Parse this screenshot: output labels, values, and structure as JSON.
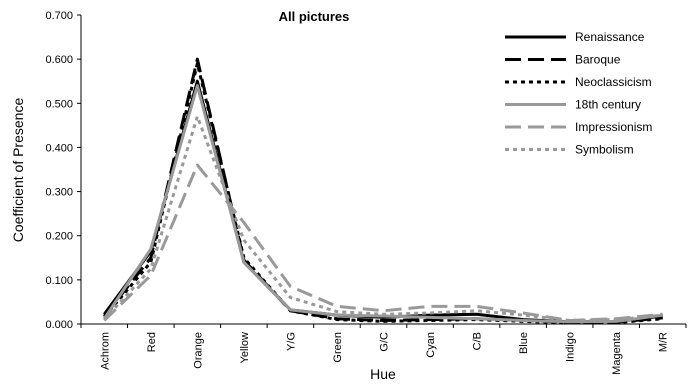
{
  "chart_data": {
    "type": "line",
    "title": "All pictures",
    "xlabel": "Hue",
    "ylabel": "Coefficient of Presence",
    "ylim": [
      0,
      0.7
    ],
    "yticks": [
      "0.000",
      "0.100",
      "0.200",
      "0.300",
      "0.400",
      "0.500",
      "0.600",
      "0.700"
    ],
    "categories": [
      "Achrom",
      "Red",
      "Orange",
      "Yellow",
      "Y/G",
      "Green",
      "G/C",
      "Cyan",
      "C/B",
      "Blue",
      "Indigo",
      "Magenta",
      "M/R"
    ],
    "legend_position": "top-right",
    "grid": false,
    "series": [
      {
        "name": "Renaissance",
        "color": "#000000",
        "style": "solid",
        "values": [
          0.022,
          0.165,
          0.55,
          0.14,
          0.032,
          0.02,
          0.015,
          0.02,
          0.022,
          0.01,
          0.005,
          0.006,
          0.018
        ]
      },
      {
        "name": "Baroque",
        "color": "#000000",
        "style": "longdash",
        "values": [
          0.018,
          0.15,
          0.6,
          0.145,
          0.03,
          0.012,
          0.008,
          0.01,
          0.012,
          0.008,
          0.004,
          0.004,
          0.014
        ]
      },
      {
        "name": "Neoclassicism",
        "color": "#000000",
        "style": "dot",
        "values": [
          0.016,
          0.14,
          0.59,
          0.15,
          0.03,
          0.01,
          0.006,
          0.008,
          0.01,
          0.006,
          0.003,
          0.003,
          0.012
        ]
      },
      {
        "name": "18th century",
        "color": "#999999",
        "style": "solid",
        "values": [
          0.012,
          0.17,
          0.54,
          0.14,
          0.032,
          0.02,
          0.018,
          0.015,
          0.012,
          0.008,
          0.005,
          0.006,
          0.02
        ]
      },
      {
        "name": "Impressionism",
        "color": "#999999",
        "style": "longdash",
        "values": [
          0.008,
          0.11,
          0.36,
          0.23,
          0.085,
          0.04,
          0.03,
          0.04,
          0.04,
          0.025,
          0.008,
          0.012,
          0.022
        ]
      },
      {
        "name": "Symbolism",
        "color": "#999999",
        "style": "dot",
        "values": [
          0.01,
          0.125,
          0.47,
          0.19,
          0.06,
          0.028,
          0.022,
          0.025,
          0.03,
          0.02,
          0.008,
          0.01,
          0.02
        ]
      }
    ]
  }
}
